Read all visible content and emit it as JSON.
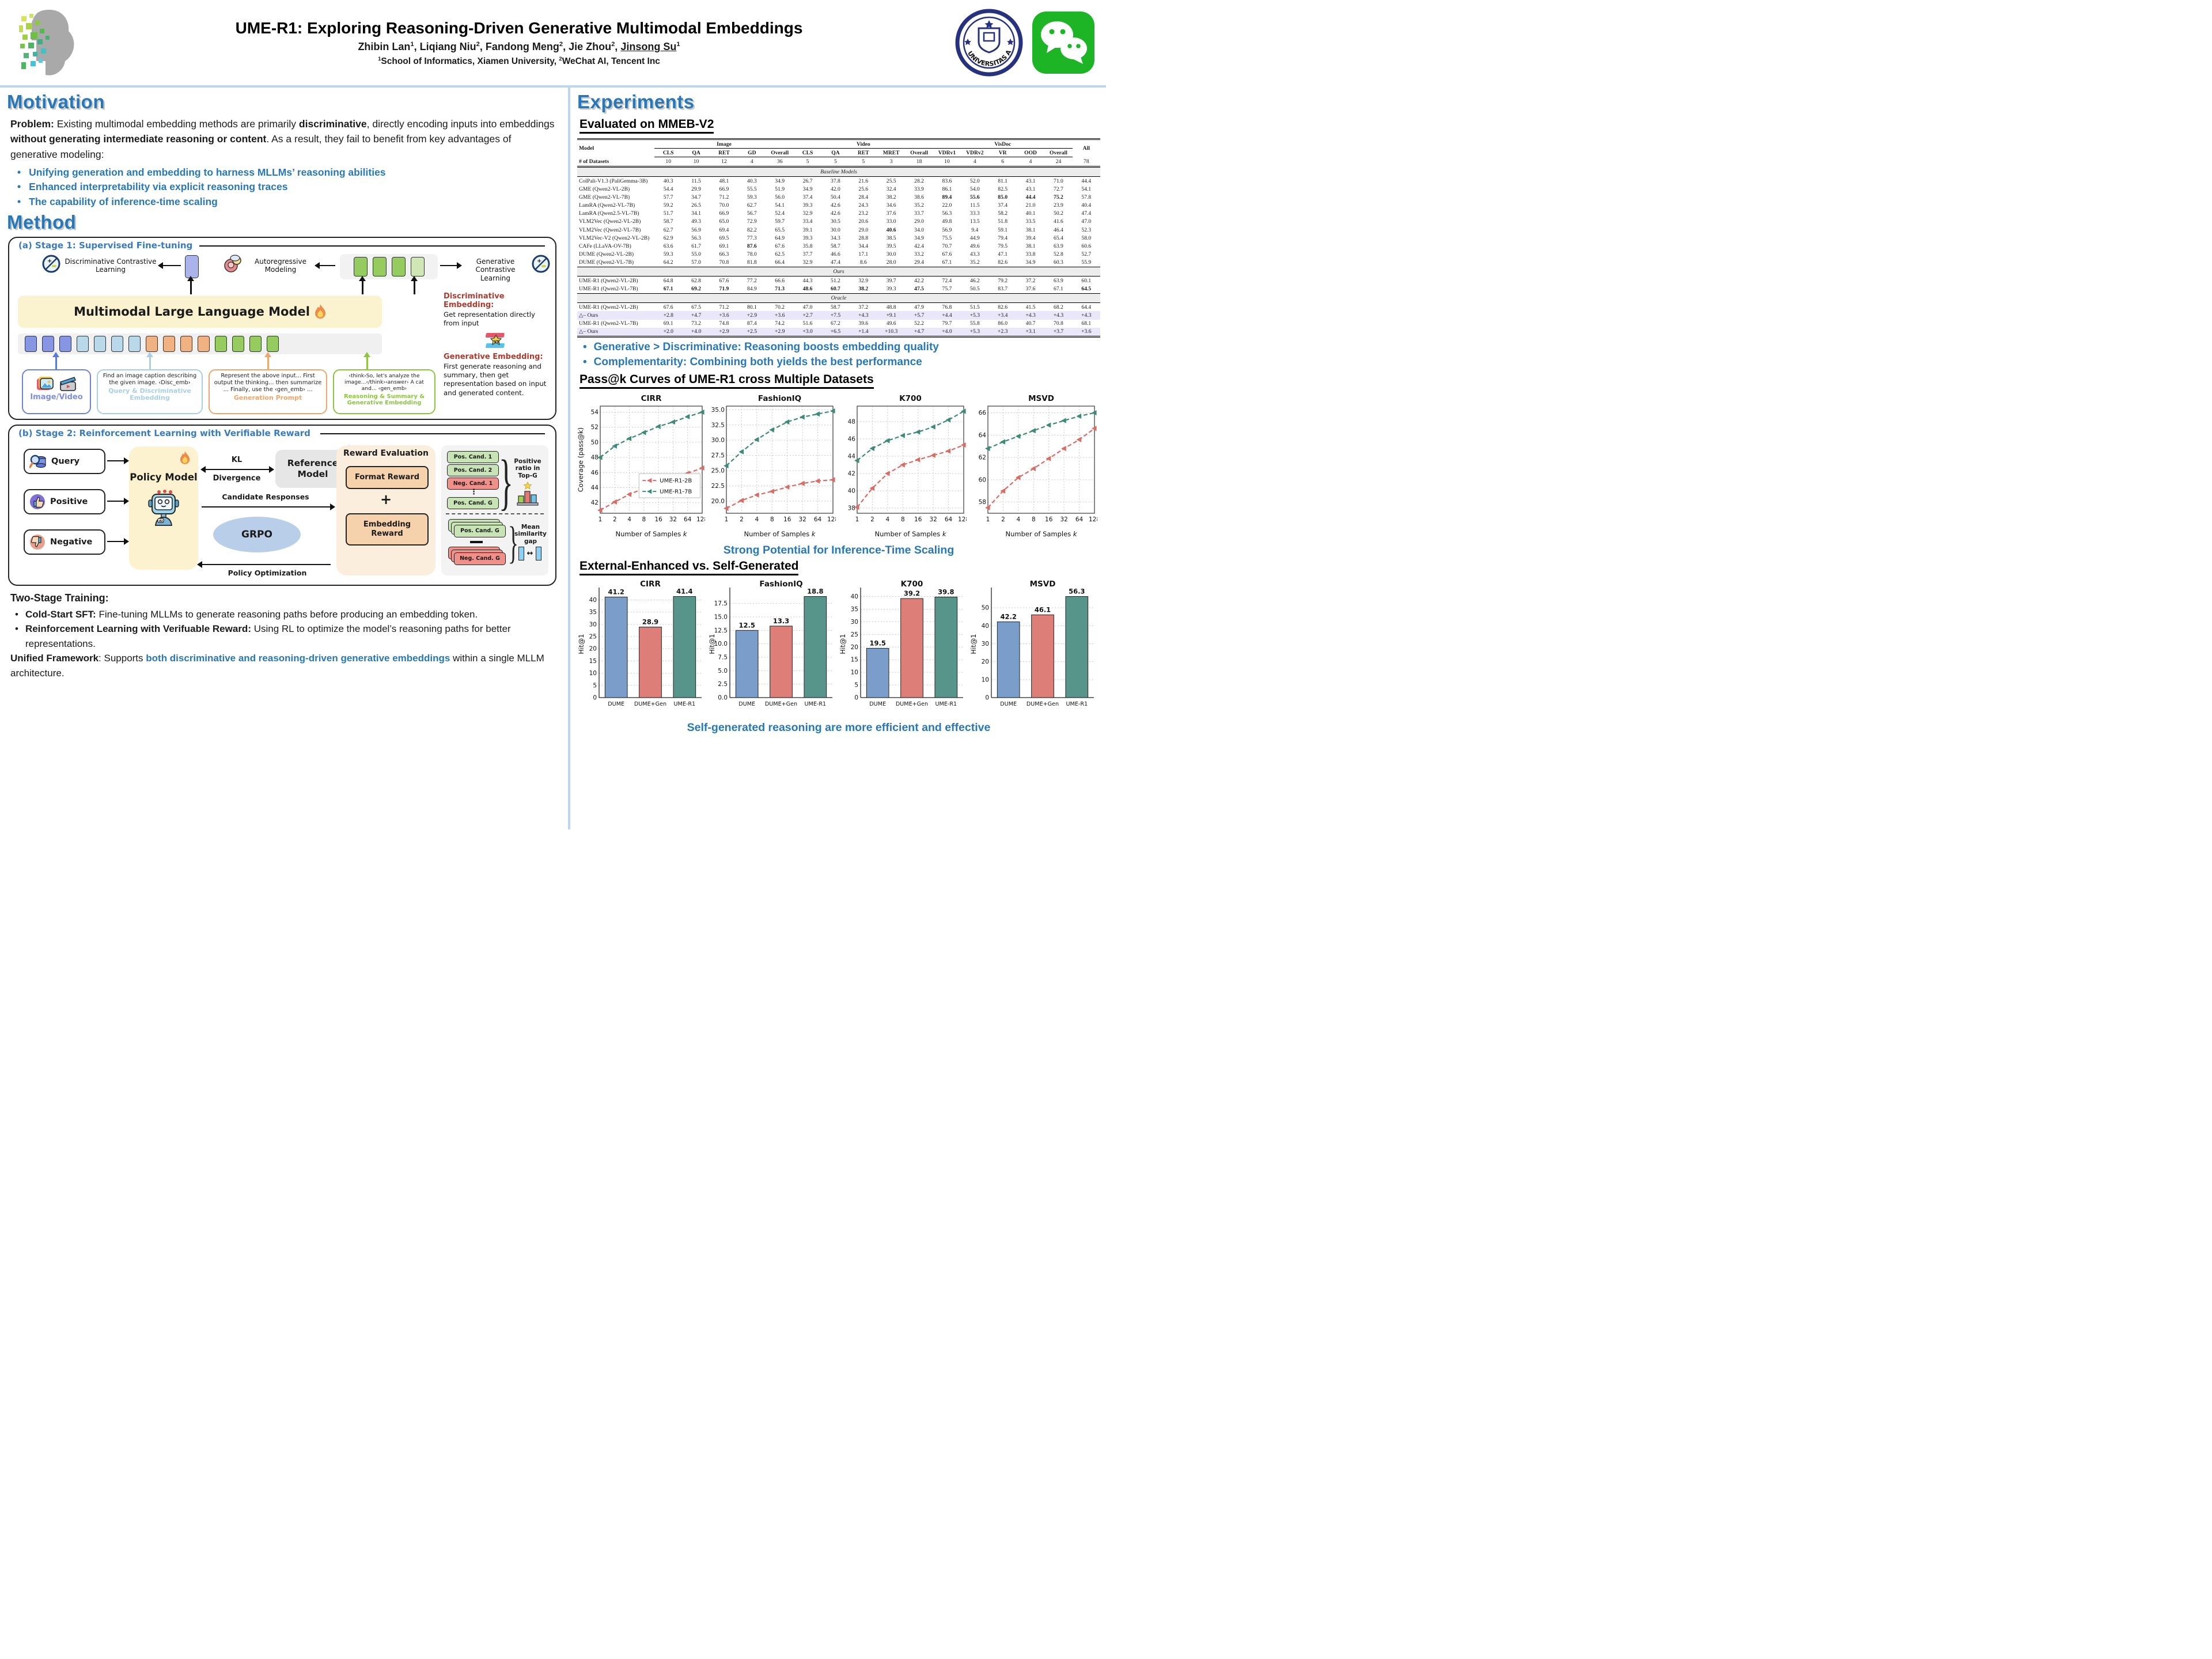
{
  "colors": {
    "accent": "#2878b8",
    "divider": "#bdd7ee",
    "series_2b": "#d96c64",
    "series_7b": "#3d8a78",
    "bar_dume": "#7b9dc9",
    "bar_dume_gen": "#dd7f78",
    "bar_ume_r1": "#57958a"
  },
  "header": {
    "title": "UME-R1: Exploring Reasoning-Driven Generative Multimodal Embeddings",
    "authors": [
      {
        "t": "Zhibin Lan"
      },
      {
        "t": "1",
        "s": "sup"
      },
      {
        "t": ", Liqiang Niu"
      },
      {
        "t": "2",
        "s": "sup"
      },
      {
        "t": ", Fandong Meng"
      },
      {
        "t": "2",
        "s": "sup"
      },
      {
        "t": ", Jie Zhou"
      },
      {
        "t": "2",
        "s": "sup"
      },
      {
        "t": ", "
      },
      {
        "t": "Jinsong Su",
        "s": "u"
      },
      {
        "t": "1",
        "s": "sup"
      }
    ],
    "affiliation": [
      {
        "t": "1",
        "s": "sup"
      },
      {
        "t": "School of Informatics, Xiamen University, "
      },
      {
        "t": "2",
        "s": "sup"
      },
      {
        "t": "WeChat AI, Tencent Inc"
      }
    ],
    "seal_text": "UNIVERSITAS AMOIENSIS"
  },
  "motivation": {
    "heading": "Motivation",
    "problem": [
      {
        "t": "Problem: ",
        "s": "b"
      },
      {
        "t": "Existing multimodal embedding methods are primarily "
      },
      {
        "t": "discriminative",
        "s": "b"
      },
      {
        "t": ", directly encoding inputs into embeddings "
      },
      {
        "t": "without generating intermediate reasoning or content",
        "s": "b"
      },
      {
        "t": ". As a result, they fail to benefit from key advantages of generative modeling:"
      }
    ],
    "bullets": [
      "Unifying generation and embedding to harness MLLMs’ reasoning abilities",
      "Enhanced interpretability via explicit reasoning traces",
      "The capability of inference-time scaling"
    ]
  },
  "method": {
    "heading": "Method",
    "stage1": {
      "title": "(a) Stage 1: Supervised Fine-tuning",
      "disc_cl": "Discriminative Contrastive Learning",
      "autoregressive": "Autoregressive Modeling",
      "gen_cl": "Generative Contrastive Learning",
      "mllm": "Multimodal Large Language Model",
      "token_colors": [
        "#8796e3",
        "#8796e3",
        "#8796e3",
        "#b9d9ea",
        "#b9d9ea",
        "#b9d9ea",
        "#b9d9ea",
        "#f0b183",
        "#f0b183",
        "#f0b183",
        "#f0b183",
        "#96cb60",
        "#96cb60",
        "#96cb60",
        "#96cb60"
      ],
      "top_token_colors": [
        "#96cb60",
        "#96cb60",
        "#96cb60",
        "#cfe7b4"
      ],
      "input_label": "Image/Video",
      "query_text": "Find an image caption describing the given image. ‹Disc_emb›",
      "query_label": "Query & Discriminative Embedding",
      "gen_prompt_text": "Represent the above input... First output the thinking... then summarize ... Finally, use the ‹gen_emb› ...",
      "gen_prompt_label": "Generation Prompt",
      "reasoning_text": "‹think›So, let's analyze the image...‹/think›‹answer› A cat and... ‹gen_emb›",
      "reasoning_label": "Reasoning & Summary & Generative Embedding",
      "disc_emb_title": "Discriminative Embedding:",
      "disc_emb_text": "Get representation directly from input",
      "gen_emb_title": "Generative Embedding:",
      "gen_emb_text": "First generate reasoning and summary, then get representation based on input and generated content."
    },
    "stage2": {
      "title": "(b) Stage 2: Reinforcement Learning with Verifiable Reward",
      "inputs": [
        "Query",
        "Positive",
        "Negative"
      ],
      "policy": "Policy Model",
      "kl_top": "KL",
      "kl_bottom": "Divergence",
      "reference": "Reference Model",
      "snowflake": "❄",
      "candidate": "Candidate Responses",
      "grpo": "GRPO",
      "policy_opt": "Policy Optimization",
      "reward_title": "Reward Evaluation",
      "format_reward": "Format Reward",
      "plus": "+",
      "embedding_reward": "Embedding Reward",
      "cand_pills": [
        "Pos. Cand. 1",
        "Pos. Cand. 2",
        "Neg. Cand. 1",
        "Pos. Cand. G"
      ],
      "dots": "⋮",
      "ratio_label": "Positive ratio in Top-G",
      "stack_pos": "Pos. Cand. G",
      "stack_neg": "Neg. Cand. G",
      "gap_label": "Mean similarity gap",
      "gap_arrow": "↔"
    },
    "training": {
      "heading": "Two-Stage Training:",
      "bullets": [
        [
          {
            "t": "Cold-Start SFT: ",
            "s": "b"
          },
          {
            "t": "Fine-tuning MLLMs to generate reasoning paths before producing an embedding token."
          }
        ],
        [
          {
            "t": "Reinforcement Learning with Verifuable Reward: ",
            "s": "b"
          },
          {
            "t": "Using RL to optimize the model’s reasoning paths for better representations."
          }
        ]
      ],
      "unified": [
        {
          "t": "Unified Framework",
          "s": "b"
        },
        {
          "t": ": Supports "
        },
        {
          "t": "both discriminative and reasoning-driven generative embeddings",
          "s": "hl"
        },
        {
          "t": " within a single MLLM architecture."
        }
      ]
    }
  },
  "experiments": {
    "heading": "Experiments",
    "mmeb_heading": "Evaluated on MMEB-V2",
    "bullets": [
      "Generative > Discriminative: Reasoning boosts embedding quality",
      "Complementarity: Combining both yields the best performance"
    ]
  },
  "table": {
    "model_header": "Model",
    "all_header": "All",
    "groups": [
      {
        "label": "Image",
        "cols": [
          "CLS",
          "QA",
          "RET",
          "GD",
          "Overall"
        ]
      },
      {
        "label": "Video",
        "cols": [
          "CLS",
          "QA",
          "RET",
          "MRET",
          "Overall"
        ]
      },
      {
        "label": "VisDoc",
        "cols": [
          "VDRv1",
          "VDRv2",
          "VR",
          "OOD",
          "Overall"
        ]
      }
    ],
    "datasets_row": {
      "label": "# of Datasets",
      "values": [
        "10",
        "10",
        "12",
        "4",
        "36",
        "5",
        "5",
        "5",
        "3",
        "18",
        "10",
        "4",
        "6",
        "4",
        "24",
        "78"
      ]
    },
    "sections": [
      {
        "header": "Baseline Models",
        "rows": [
          {
            "name": "ColPali-V1.3 (PaliGemma-3B)",
            "values": [
              "40.3",
              "11.5",
              "48.1",
              "40.3",
              "34.9",
              "26.7",
              "37.8",
              "21.6",
              "25.5",
              "28.2",
              "83.6",
              "52.0",
              "81.1",
              "43.1",
              "71.0",
              "44.4"
            ]
          },
          {
            "name": "GME (Qwen2-VL-2B)",
            "values": [
              "54.4",
              "29.9",
              "66.9",
              "55.5",
              "51.9",
              "34.9",
              "42.0",
              "25.6",
              "32.4",
              "33.9",
              "86.1",
              "54.0",
              "82.5",
              "43.1",
              "72.7",
              "54.1"
            ]
          },
          {
            "name": "GME (Qwen2-VL-7B)",
            "values": [
              "57.7",
              "34.7",
              "71.2",
              "59.3",
              "56.0",
              "37.4",
              "50.4",
              "28.4",
              "38.2",
              "38.6",
              "*89.4",
              "*55.6",
              "*85.0",
              "*44.4",
              "*75.2",
              "57.8"
            ]
          },
          {
            "name": "LamRA (Qwen2-VL-7B)",
            "values": [
              "59.2",
              "26.5",
              "70.0",
              "62.7",
              "54.1",
              "39.3",
              "42.6",
              "24.3",
              "34.6",
              "35.2",
              "22.0",
              "11.5",
              "37.4",
              "21.0",
              "23.9",
              "40.4"
            ]
          },
          {
            "name": "LamRA (Qwen2.5-VL-7B)",
            "values": [
              "51.7",
              "34.1",
              "66.9",
              "56.7",
              "52.4",
              "32.9",
              "42.6",
              "23.2",
              "37.6",
              "33.7",
              "56.3",
              "33.3",
              "58.2",
              "40.1",
              "50.2",
              "47.4"
            ]
          },
          {
            "name": "VLM2Vec (Qwen2-VL-2B)",
            "values": [
              "58.7",
              "49.3",
              "65.0",
              "72.9",
              "59.7",
              "33.4",
              "30.5",
              "20.6",
              "33.0",
              "29.0",
              "49.8",
              "13.5",
              "51.8",
              "33.5",
              "41.6",
              "47.0"
            ]
          },
          {
            "name": "VLM2Vec (Qwen2-VL-7B)",
            "values": [
              "62.7",
              "56.9",
              "69.4",
              "82.2",
              "65.5",
              "39.1",
              "30.0",
              "29.0",
              "*40.6",
              "34.0",
              "56.9",
              "9.4",
              "59.1",
              "38.1",
              "46.4",
              "52.3"
            ]
          },
          {
            "name": "VLM2Vec-V2 (Qwen2-VL-2B)",
            "values": [
              "62.9",
              "56.3",
              "69.5",
              "77.3",
              "64.9",
              "39.3",
              "34.3",
              "28.8",
              "38.5",
              "34.9",
              "75.5",
              "44.9",
              "79.4",
              "39.4",
              "65.4",
              "58.0"
            ]
          },
          {
            "name": "CAFe (LLaVA-OV-7B)",
            "values": [
              "63.6",
              "61.7",
              "69.1",
              "*87.6",
              "67.6",
              "35.8",
              "58.7",
              "34.4",
              "39.5",
              "42.4",
              "70.7",
              "49.6",
              "79.5",
              "38.1",
              "63.9",
              "60.6"
            ]
          },
          {
            "name": "DUME (Qwen2-VL-2B)",
            "values": [
              "59.3",
              "55.0",
              "66.3",
              "78.0",
              "62.5",
              "37.7",
              "46.6",
              "17.1",
              "30.0",
              "33.2",
              "67.6",
              "43.3",
              "47.1",
              "33.8",
              "52.8",
              "52.7"
            ]
          },
          {
            "name": "DUME (Qwen2-VL-7B)",
            "values": [
              "64.2",
              "57.0",
              "70.8",
              "81.8",
              "66.4",
              "32.9",
              "47.4",
              "8.6",
              "28.0",
              "29.4",
              "67.1",
              "35.2",
              "82.6",
              "34.9",
              "60.3",
              "55.9"
            ]
          }
        ]
      },
      {
        "header": "Ours",
        "rows": [
          {
            "name": "UME-R1 (Qwen2-VL-2B)",
            "values": [
              "64.8",
              "62.8",
              "67.6",
              "77.2",
              "66.6",
              "44.3",
              "51.2",
              "32.9",
              "39.7",
              "42.2",
              "72.4",
              "46.2",
              "79.2",
              "37.2",
              "63.9",
              "60.1"
            ]
          },
          {
            "name": "UME-R1 (Qwen2-VL-7B)",
            "values": [
              "*67.1",
              "*69.2",
              "*71.9",
              "84.9",
              "*71.3",
              "*48.6",
              "*60.7",
              "*38.2",
              "39.3",
              "*47.5",
              "75.7",
              "50.5",
              "83.7",
              "37.6",
              "67.1",
              "*64.5"
            ]
          }
        ]
      },
      {
        "header": "Oracle",
        "rows": [
          {
            "name": "UME-R1 (Qwen2-VL-2B)",
            "values": [
              "67.6",
              "67.5",
              "71.2",
              "80.1",
              "70.2",
              "47.0",
              "58.7",
              "37.2",
              "48.8",
              "47.9",
              "76.8",
              "51.5",
              "82.6",
              "41.5",
              "68.2",
              "64.4"
            ]
          },
          {
            "name": "△– Ours",
            "delta": true,
            "values": [
              "+2.8",
              "+4.7",
              "+3.6",
              "+2.9",
              "+3.6",
              "+2.7",
              "+7.5",
              "+4.3",
              "+9.1",
              "+5.7",
              "+4.4",
              "+5.3",
              "+3.4",
              "+4.3",
              "+4.3",
              "+4.3"
            ]
          },
          {
            "name": "UME-R1 (Qwen2-VL-7B)",
            "values": [
              "69.1",
              "73.2",
              "74.8",
              "87.4",
              "74.2",
              "51.6",
              "67.2",
              "39.6",
              "49.6",
              "52.2",
              "79.7",
              "55.8",
              "86.0",
              "40.7",
              "70.8",
              "68.1"
            ]
          },
          {
            "name": "△– Ours",
            "delta": true,
            "values": [
              "+2.0",
              "+4.0",
              "+2.9",
              "+2.5",
              "+2.9",
              "+3.0",
              "+6.5",
              "+1.4",
              "+10.3",
              "+4.7",
              "+4.0",
              "+5.3",
              "+2.3",
              "+3.1",
              "+3.7",
              "+3.6"
            ]
          }
        ]
      }
    ]
  },
  "pass_at_k": {
    "section_title": "Pass@k Curves of UME-R1 cross Multiple Datasets",
    "takeaway": "Strong Potential for Inference-Time Scaling",
    "type": "line",
    "xlabel": "Number of Samples",
    "xlabel_var": "k",
    "ylabel": "Coverage (pass@k)",
    "x_ticks": [
      1,
      2,
      4,
      8,
      16,
      32,
      64,
      128
    ],
    "colors": {
      "UME-R1-2B": "#d96c64",
      "UME-R1-7B": "#3d8a78"
    },
    "charts": [
      {
        "title": "CIRR",
        "dec": 0,
        "yticks": [
          42,
          44,
          46,
          48,
          50,
          52,
          54
        ],
        "ylim": [
          40.6,
          54.8
        ],
        "legend": true,
        "show_ylabel": true,
        "series": [
          {
            "name": "UME-R1-2B",
            "values": [
              41.0,
              42.1,
              43.1,
              43.9,
              44.5,
              45.2,
              45.9,
              46.6
            ]
          },
          {
            "name": "UME-R1-7B",
            "values": [
              48.0,
              49.5,
              50.5,
              51.3,
              52.1,
              52.7,
              53.4,
              54.0
            ]
          }
        ]
      },
      {
        "title": "FashionIQ",
        "dec": 1,
        "yticks": [
          20.0,
          22.5,
          25.0,
          27.5,
          30.0,
          32.5,
          35.0
        ],
        "ylim": [
          18.0,
          35.6
        ],
        "series": [
          {
            "name": "UME-R1-2B",
            "values": [
              18.8,
              20.1,
              21.0,
              21.6,
              22.3,
              22.9,
              23.3,
              23.5
            ]
          },
          {
            "name": "UME-R1-7B",
            "values": [
              25.8,
              28.1,
              30.1,
              31.7,
              33.0,
              33.8,
              34.3,
              34.8
            ]
          }
        ]
      },
      {
        "title": "K700",
        "dec": 0,
        "yticks": [
          38,
          40,
          42,
          44,
          46,
          48
        ],
        "ylim": [
          37.4,
          49.8
        ],
        "series": [
          {
            "name": "UME-R1-2B",
            "values": [
              38.1,
              40.3,
              42.0,
              43.0,
              43.6,
              44.1,
              44.6,
              45.3
            ]
          },
          {
            "name": "UME-R1-7B",
            "values": [
              43.5,
              44.9,
              45.8,
              46.4,
              46.8,
              47.4,
              48.2,
              49.2
            ]
          }
        ]
      },
      {
        "title": "MSVD",
        "dec": 0,
        "yticks": [
          58,
          60,
          62,
          64,
          66
        ],
        "ylim": [
          57.0,
          66.6
        ],
        "series": [
          {
            "name": "UME-R1-2B",
            "values": [
              57.5,
              59.0,
              60.2,
              61.0,
              61.9,
              62.8,
              63.6,
              64.6
            ]
          },
          {
            "name": "UME-R1-7B",
            "values": [
              62.8,
              63.4,
              63.9,
              64.4,
              64.9,
              65.3,
              65.7,
              66.0
            ]
          }
        ]
      }
    ]
  },
  "external_vs_self": {
    "section_title": "External-Enhanced vs. Self-Generated",
    "takeaway": "Self-generated reasoning are more efficient and effective",
    "type": "bar",
    "ylabel": "Hit@1",
    "categories": [
      "DUME",
      "DUME+Gen",
      "UME-R1"
    ],
    "colors": [
      "#7b9dc9",
      "#dd7f78",
      "#57958a"
    ],
    "charts": [
      {
        "title": "CIRR",
        "dec": 0,
        "yticks": [
          0,
          5,
          10,
          15,
          20,
          25,
          30,
          35,
          40
        ],
        "values": [
          41.2,
          28.9,
          41.4
        ]
      },
      {
        "title": "FashionIQ",
        "dec": 1,
        "yticks": [
          0,
          2.5,
          5,
          7.5,
          10,
          12.5,
          15,
          17.5
        ],
        "values": [
          12.5,
          13.3,
          18.8
        ]
      },
      {
        "title": "K700",
        "dec": 0,
        "yticks": [
          0,
          5,
          10,
          15,
          20,
          25,
          30,
          35,
          40
        ],
        "values": [
          19.5,
          39.2,
          39.8
        ]
      },
      {
        "title": "MSVD",
        "dec": 0,
        "yticks": [
          0,
          10,
          20,
          30,
          40,
          50
        ],
        "values": [
          42.2,
          46.1,
          56.3
        ]
      }
    ]
  }
}
